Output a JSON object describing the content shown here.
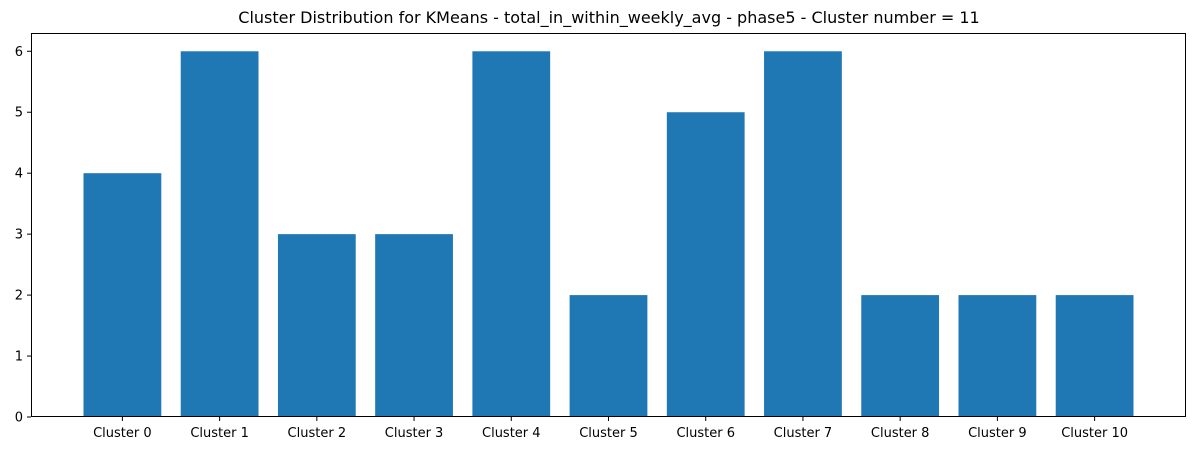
{
  "chart_data": {
    "type": "bar",
    "title": "Cluster Distribution for KMeans - total_in_within_weekly_avg - phase5 - Cluster number = 11",
    "xlabel": "",
    "ylabel": "",
    "categories": [
      "Cluster 0",
      "Cluster 1",
      "Cluster 2",
      "Cluster 3",
      "Cluster 4",
      "Cluster 5",
      "Cluster 6",
      "Cluster 7",
      "Cluster 8",
      "Cluster 9",
      "Cluster 10"
    ],
    "values": [
      4,
      6,
      3,
      3,
      6,
      2,
      5,
      6,
      2,
      2,
      2
    ],
    "ylim": [
      0,
      6.3
    ],
    "yticks": [
      0,
      1,
      2,
      3,
      4,
      5,
      6
    ],
    "bar_color": "#1f77b4",
    "grid": false,
    "legend": "none"
  }
}
